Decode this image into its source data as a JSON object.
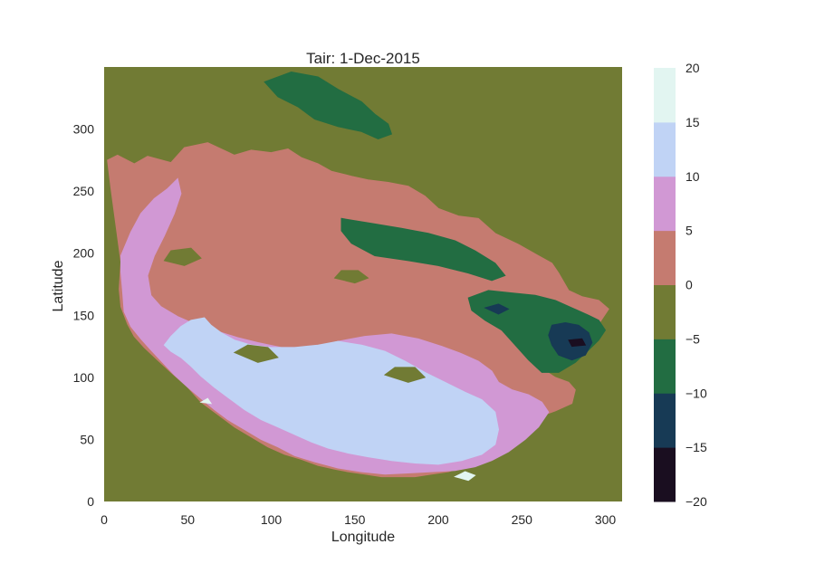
{
  "chart_data": {
    "type": "filled-contour",
    "title": "Tair: 1-Dec-2015",
    "xlabel": "Longitude",
    "ylabel": "Latitude",
    "xlim": [
      0,
      310
    ],
    "ylim": [
      0,
      350
    ],
    "xticks": [
      0,
      50,
      100,
      150,
      200,
      250,
      300
    ],
    "yticks": [
      0,
      50,
      100,
      150,
      200,
      250,
      300
    ],
    "grid": false,
    "colorbar": {
      "levels": [
        -20,
        -15,
        -10,
        -5,
        0,
        5,
        10,
        15,
        20
      ],
      "tick_labels": [
        "−20",
        "−15",
        "−10",
        "−5",
        "0",
        "5",
        "10",
        "15",
        "20"
      ],
      "colors": [
        "#1a0e20",
        "#173a55",
        "#226d42",
        "#717b34",
        "#c57b70",
        "#d198d4",
        "#c0d3f5",
        "#e2f5f1"
      ]
    },
    "background_level_color": "#717b34",
    "regions": [
      {
        "band": [
          0,
          5
        ],
        "color": "#c57b70",
        "polygon": [
          [
            2,
            275
          ],
          [
            8,
            279
          ],
          [
            18,
            272
          ],
          [
            26,
            278
          ],
          [
            40,
            273
          ],
          [
            48,
            285
          ],
          [
            62,
            289
          ],
          [
            78,
            279
          ],
          [
            88,
            283
          ],
          [
            100,
            281
          ],
          [
            110,
            284
          ],
          [
            118,
            277
          ],
          [
            128,
            272
          ],
          [
            136,
            266
          ],
          [
            148,
            262
          ],
          [
            158,
            259
          ],
          [
            170,
            257
          ],
          [
            182,
            254
          ],
          [
            192,
            246
          ],
          [
            200,
            236
          ],
          [
            212,
            230
          ],
          [
            224,
            228
          ],
          [
            234,
            216
          ],
          [
            248,
            207
          ],
          [
            260,
            198
          ],
          [
            268,
            192
          ],
          [
            272,
            184
          ],
          [
            278,
            170
          ],
          [
            286,
            165
          ],
          [
            296,
            162
          ],
          [
            302,
            155
          ],
          [
            296,
            143
          ],
          [
            286,
            137
          ],
          [
            276,
            134
          ],
          [
            266,
            127
          ],
          [
            258,
            119
          ],
          [
            262,
            107
          ],
          [
            270,
            100
          ],
          [
            278,
            96
          ],
          [
            282,
            90
          ],
          [
            280,
            79
          ],
          [
            270,
            73
          ],
          [
            260,
            68
          ],
          [
            252,
            58
          ],
          [
            246,
            48
          ],
          [
            238,
            41
          ],
          [
            228,
            34
          ],
          [
            216,
            28
          ],
          [
            206,
            24
          ],
          [
            196,
            22
          ],
          [
            186,
            20
          ],
          [
            176,
            20
          ],
          [
            166,
            20
          ],
          [
            156,
            22
          ],
          [
            146,
            24
          ],
          [
            138,
            26
          ],
          [
            128,
            29
          ],
          [
            118,
            34
          ],
          [
            108,
            38
          ],
          [
            98,
            44
          ],
          [
            88,
            52
          ],
          [
            78,
            60
          ],
          [
            68,
            70
          ],
          [
            58,
            80
          ],
          [
            50,
            92
          ],
          [
            40,
            104
          ],
          [
            32,
            114
          ],
          [
            24,
            124
          ],
          [
            18,
            133
          ],
          [
            14,
            143
          ],
          [
            10,
            157
          ],
          [
            9,
            171
          ],
          [
            10,
            193
          ],
          [
            8,
            213
          ],
          [
            6,
            233
          ],
          [
            4,
            253
          ]
        ]
      },
      {
        "band": [
          5,
          10
        ],
        "color": "#d198d4",
        "polygon": [
          [
            10,
            198
          ],
          [
            16,
            217
          ],
          [
            22,
            232
          ],
          [
            30,
            244
          ],
          [
            38,
            252
          ],
          [
            44,
            260
          ],
          [
            46,
            248
          ],
          [
            42,
            232
          ],
          [
            36,
            214
          ],
          [
            30,
            198
          ],
          [
            26,
            182
          ],
          [
            28,
            166
          ],
          [
            34,
            157
          ],
          [
            44,
            149
          ],
          [
            56,
            142
          ],
          [
            68,
            137
          ],
          [
            80,
            132
          ],
          [
            92,
            128
          ],
          [
            106,
            124
          ],
          [
            124,
            124
          ],
          [
            140,
            129
          ],
          [
            156,
            133
          ],
          [
            172,
            135
          ],
          [
            188,
            131
          ],
          [
            202,
            125
          ],
          [
            214,
            119
          ],
          [
            224,
            113
          ],
          [
            232,
            105
          ],
          [
            236,
            96
          ],
          [
            244,
            90
          ],
          [
            254,
            86
          ],
          [
            262,
            80
          ],
          [
            266,
            72
          ],
          [
            260,
            60
          ],
          [
            252,
            50
          ],
          [
            242,
            40
          ],
          [
            232,
            33
          ],
          [
            222,
            28
          ],
          [
            210,
            25
          ],
          [
            196,
            24
          ],
          [
            182,
            23
          ],
          [
            168,
            22
          ],
          [
            154,
            24
          ],
          [
            140,
            27
          ],
          [
            126,
            32
          ],
          [
            114,
            37
          ],
          [
            104,
            44
          ],
          [
            94,
            50
          ],
          [
            84,
            58
          ],
          [
            74,
            66
          ],
          [
            66,
            74
          ],
          [
            58,
            83
          ],
          [
            50,
            92
          ],
          [
            42,
            102
          ],
          [
            35,
            112
          ],
          [
            28,
            122
          ],
          [
            22,
            131
          ],
          [
            16,
            141
          ],
          [
            12,
            153
          ],
          [
            11,
            170
          ],
          [
            10,
            185
          ]
        ]
      },
      {
        "band": [
          10,
          15
        ],
        "color": "#c0d3f5",
        "polygon": [
          [
            36,
            126
          ],
          [
            40,
            133
          ],
          [
            46,
            141
          ],
          [
            52,
            146
          ],
          [
            60,
            148
          ],
          [
            64,
            142
          ],
          [
            70,
            136
          ],
          [
            78,
            130
          ],
          [
            88,
            126
          ],
          [
            100,
            124
          ],
          [
            114,
            124
          ],
          [
            128,
            126
          ],
          [
            140,
            129
          ],
          [
            154,
            126
          ],
          [
            168,
            121
          ],
          [
            180,
            113
          ],
          [
            192,
            104
          ],
          [
            204,
            96
          ],
          [
            216,
            88
          ],
          [
            226,
            82
          ],
          [
            234,
            72
          ],
          [
            236,
            58
          ],
          [
            234,
            46
          ],
          [
            226,
            38
          ],
          [
            214,
            33
          ],
          [
            200,
            30
          ],
          [
            186,
            31
          ],
          [
            172,
            33
          ],
          [
            158,
            36
          ],
          [
            146,
            39
          ],
          [
            134,
            43
          ],
          [
            124,
            48
          ],
          [
            114,
            54
          ],
          [
            104,
            60
          ],
          [
            94,
            66
          ],
          [
            84,
            74
          ],
          [
            74,
            84
          ],
          [
            66,
            92
          ],
          [
            58,
            101
          ],
          [
            52,
            109
          ],
          [
            46,
            116
          ],
          [
            40,
            121
          ]
        ]
      },
      {
        "band": [
          15,
          20
        ],
        "color": "#e2f5f1",
        "polygon": [
          [
            210,
            20
          ],
          [
            216,
            24
          ],
          [
            222,
            21
          ],
          [
            218,
            17
          ]
        ]
      },
      {
        "band": [
          15,
          20
        ],
        "color": "#e2f5f1",
        "polygon": [
          [
            58,
            80
          ],
          [
            62,
            83
          ],
          [
            64,
            79
          ]
        ]
      },
      {
        "band": [
          -5,
          0
        ],
        "color": "#717b34",
        "polygon": [
          [
            138,
            180
          ],
          [
            150,
            176
          ],
          [
            158,
            180
          ],
          [
            152,
            186
          ],
          [
            142,
            186
          ]
        ]
      },
      {
        "band": [
          -5,
          0
        ],
        "color": "#717b34",
        "polygon": [
          [
            36,
            194
          ],
          [
            48,
            190
          ],
          [
            58,
            196
          ],
          [
            52,
            204
          ],
          [
            40,
            202
          ]
        ]
      },
      {
        "band": [
          -5,
          0
        ],
        "color": "#717b34",
        "polygon": [
          [
            78,
            120
          ],
          [
            92,
            112
          ],
          [
            104,
            116
          ],
          [
            98,
            124
          ],
          [
            86,
            126
          ]
        ]
      },
      {
        "band": [
          -5,
          0
        ],
        "color": "#717b34",
        "polygon": [
          [
            168,
            102
          ],
          [
            182,
            96
          ],
          [
            192,
            100
          ],
          [
            186,
            108
          ],
          [
            174,
            108
          ]
        ]
      },
      {
        "band": [
          -10,
          -5
        ],
        "color": "#226d42",
        "polygon": [
          [
            96,
            338
          ],
          [
            112,
            346
          ],
          [
            128,
            342
          ],
          [
            140,
            332
          ],
          [
            154,
            322
          ],
          [
            162,
            312
          ],
          [
            170,
            304
          ],
          [
            172,
            296
          ],
          [
            164,
            292
          ],
          [
            154,
            298
          ],
          [
            140,
            302
          ],
          [
            126,
            308
          ],
          [
            116,
            318
          ],
          [
            104,
            326
          ]
        ]
      },
      {
        "band": [
          -10,
          -5
        ],
        "color": "#226d42",
        "polygon": [
          [
            142,
            228
          ],
          [
            160,
            224
          ],
          [
            178,
            220
          ],
          [
            194,
            216
          ],
          [
            210,
            210
          ],
          [
            222,
            202
          ],
          [
            234,
            192
          ],
          [
            240,
            182
          ],
          [
            232,
            178
          ],
          [
            218,
            184
          ],
          [
            200,
            190
          ],
          [
            182,
            194
          ],
          [
            162,
            198
          ],
          [
            148,
            208
          ],
          [
            142,
            218
          ]
        ]
      },
      {
        "band": [
          -10,
          -5
        ],
        "color": "#226d42",
        "polygon": [
          [
            218,
            164
          ],
          [
            230,
            170
          ],
          [
            244,
            168
          ],
          [
            258,
            166
          ],
          [
            270,
            162
          ],
          [
            280,
            156
          ],
          [
            290,
            150
          ],
          [
            296,
            146
          ],
          [
            300,
            138
          ],
          [
            296,
            130
          ],
          [
            290,
            122
          ],
          [
            282,
            112
          ],
          [
            272,
            104
          ],
          [
            262,
            104
          ],
          [
            254,
            114
          ],
          [
            246,
            126
          ],
          [
            238,
            138
          ],
          [
            228,
            146
          ],
          [
            220,
            154
          ]
        ]
      },
      {
        "band": [
          -15,
          -10
        ],
        "color": "#173a55",
        "polygon": [
          [
            268,
            142
          ],
          [
            276,
            144
          ],
          [
            284,
            142
          ],
          [
            290,
            136
          ],
          [
            292,
            128
          ],
          [
            288,
            118
          ],
          [
            280,
            114
          ],
          [
            272,
            118
          ],
          [
            268,
            126
          ],
          [
            266,
            134
          ]
        ]
      },
      {
        "band": [
          -15,
          -10
        ],
        "color": "#173a55",
        "polygon": [
          [
            228,
            156
          ],
          [
            236,
            159
          ],
          [
            242,
            155
          ],
          [
            236,
            151
          ]
        ]
      },
      {
        "band": [
          -20,
          -15
        ],
        "color": "#1a0e20",
        "polygon": [
          [
            278,
            130
          ],
          [
            286,
            131
          ],
          [
            288,
            126
          ],
          [
            280,
            125
          ]
        ]
      }
    ]
  }
}
